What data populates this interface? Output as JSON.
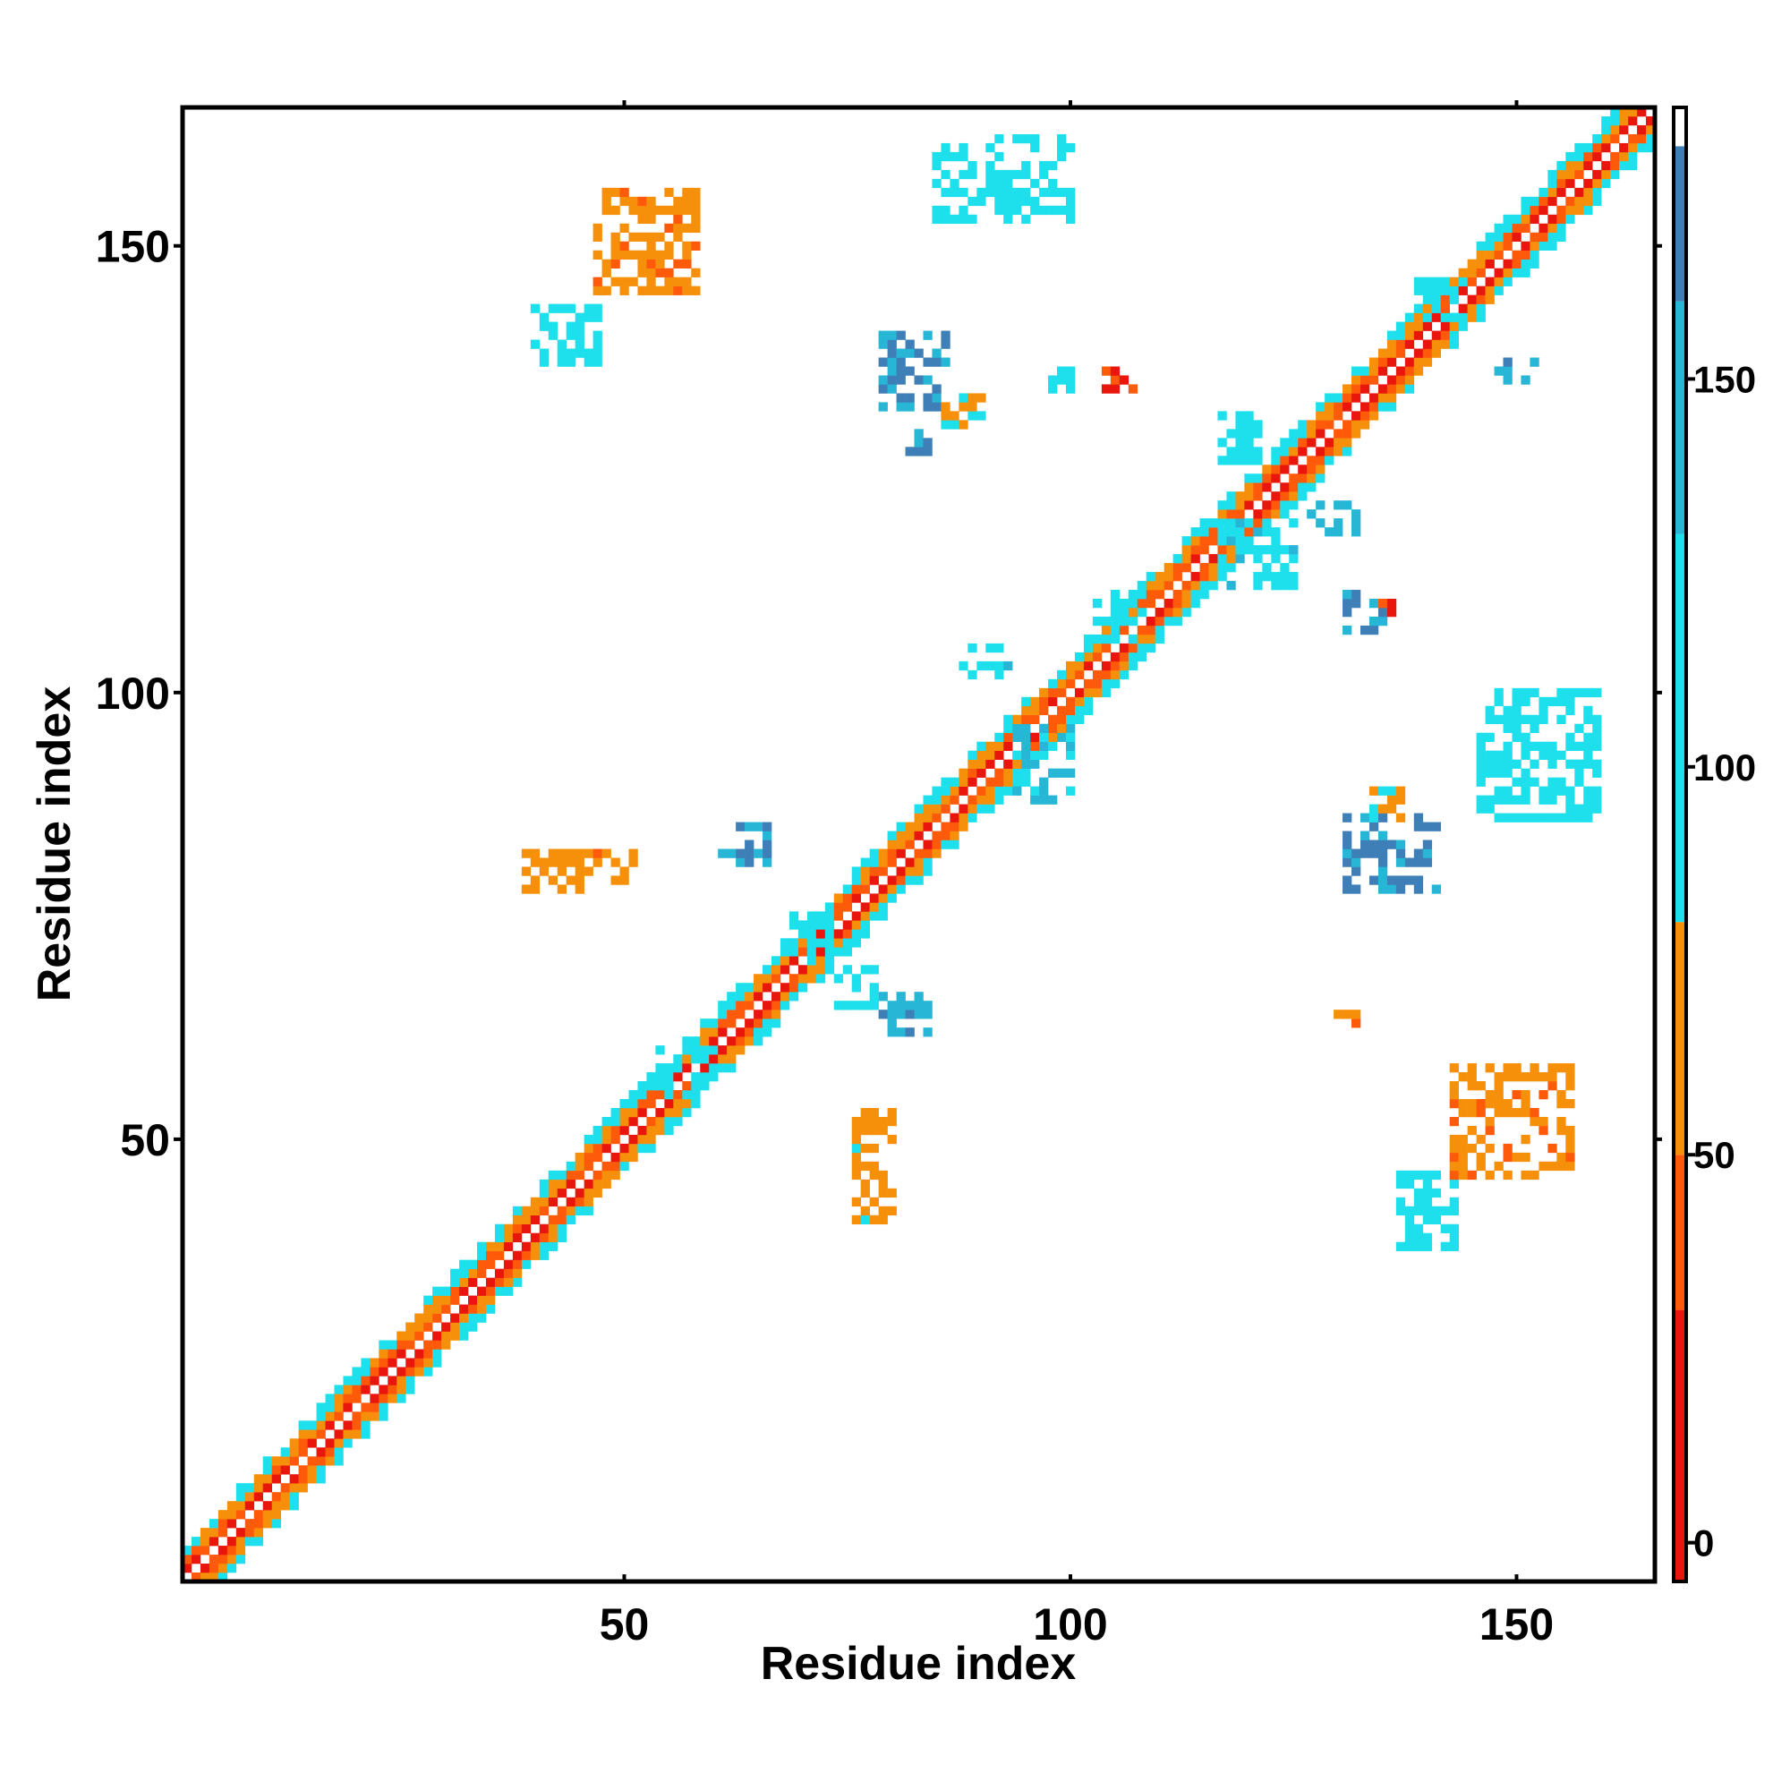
{
  "chart_data": {
    "type": "heatmap",
    "title": "",
    "xlabel": "Residue index",
    "ylabel": "Residue index",
    "xlim": [
      1,
      165
    ],
    "ylim": [
      1,
      165
    ],
    "x_ticks": [
      50,
      100,
      150
    ],
    "y_ticks": [
      50,
      100,
      150
    ],
    "grid": false,
    "legend": "colorbar-right",
    "colorbar": {
      "range": [
        -5,
        185
      ],
      "ticks": [
        0,
        50,
        100,
        150
      ],
      "bands": [
        {
          "from": -5,
          "to": 30,
          "color": "#e8160c"
        },
        {
          "from": 30,
          "to": 50,
          "color": "#ff5a0a"
        },
        {
          "from": 50,
          "to": 80,
          "color": "#f6900a"
        },
        {
          "from": 80,
          "to": 130,
          "color": "#1ee0ec"
        },
        {
          "from": 130,
          "to": 160,
          "color": "#27b6d6"
        },
        {
          "from": 160,
          "to": 180,
          "color": "#3f7fb8"
        },
        {
          "from": 180,
          "to": 185,
          "color": "#ffffff"
        }
      ]
    },
    "diagonal_band": {
      "from": 1,
      "to": 165,
      "half_width": 4
    },
    "contact_patches": [
      {
        "x": [
          79,
          86
        ],
        "y": [
          132,
          140
        ],
        "value": 165
      },
      {
        "x": [
          86,
          90
        ],
        "y": [
          130,
          133
        ],
        "value": 70
      },
      {
        "x": [
          82,
          84
        ],
        "y": [
          127,
          129
        ],
        "value": 160
      },
      {
        "x": [
          98,
          101
        ],
        "y": [
          134,
          136
        ],
        "value": 110
      },
      {
        "x": [
          104,
          107
        ],
        "y": [
          134,
          136
        ],
        "value": 20
      },
      {
        "x": [
          40,
          47
        ],
        "y": [
          137,
          143
        ],
        "value": 110
      },
      {
        "x": [
          47,
          58
        ],
        "y": [
          145,
          156
        ],
        "value": 60
      },
      {
        "x": [
          85,
          100
        ],
        "y": [
          153,
          162
        ],
        "value": 115
      },
      {
        "x": [
          131,
          141
        ],
        "y": [
          78,
          86
        ],
        "value": 165
      },
      {
        "x": [
          134,
          137
        ],
        "y": [
          86,
          89
        ],
        "value": 70
      },
      {
        "x": [
          131,
          135
        ],
        "y": [
          107,
          111
        ],
        "value": 160
      },
      {
        "x": [
          135,
          136
        ],
        "y": [
          109,
          110
        ],
        "value": 20
      },
      {
        "x": [
          61,
          66
        ],
        "y": [
          81,
          85
        ],
        "value": 160
      },
      {
        "x": [
          39,
          51
        ],
        "y": [
          78,
          82
        ],
        "value": 60
      },
      {
        "x": [
          79,
          84
        ],
        "y": [
          62,
          66
        ],
        "value": 155
      },
      {
        "x": [
          76,
          80
        ],
        "y": [
          41,
          53
        ],
        "value": 70
      },
      {
        "x": [
          137,
          143
        ],
        "y": [
          38,
          46
        ],
        "value": 110
      },
      {
        "x": [
          143,
          156
        ],
        "y": [
          46,
          58
        ],
        "value": 60
      },
      {
        "x": [
          146,
          159
        ],
        "y": [
          86,
          100
        ],
        "value": 115
      },
      {
        "x": [
          130,
          133
        ],
        "y": [
          63,
          64
        ],
        "value": 60
      },
      {
        "x": [
          94,
          100
        ],
        "y": [
          88,
          96
        ],
        "value": 130
      },
      {
        "x": [
          88,
          93
        ],
        "y": [
          102,
          105
        ],
        "value": 120
      },
      {
        "x": [
          117,
          125
        ],
        "y": [
          112,
          119
        ],
        "value": 120
      },
      {
        "x": [
          117,
          121
        ],
        "y": [
          126,
          131
        ],
        "value": 110
      },
      {
        "x": [
          127,
          132
        ],
        "y": [
          118,
          121
        ],
        "value": 145
      },
      {
        "x": [
          103,
          108
        ],
        "y": [
          106,
          111
        ],
        "value": 115
      },
      {
        "x": [
          69,
          73
        ],
        "y": [
          70,
          75
        ],
        "value": 115
      },
      {
        "x": [
          73,
          78
        ],
        "y": [
          65,
          69
        ],
        "value": 105
      },
      {
        "x": [
          54,
          60
        ],
        "y": [
          55,
          60
        ],
        "value": 115
      },
      {
        "x": [
          139,
          144
        ],
        "y": [
          142,
          146
        ],
        "value": 115
      },
      {
        "x": [
          148,
          152
        ],
        "y": [
          135,
          137
        ],
        "value": 150
      }
    ]
  }
}
